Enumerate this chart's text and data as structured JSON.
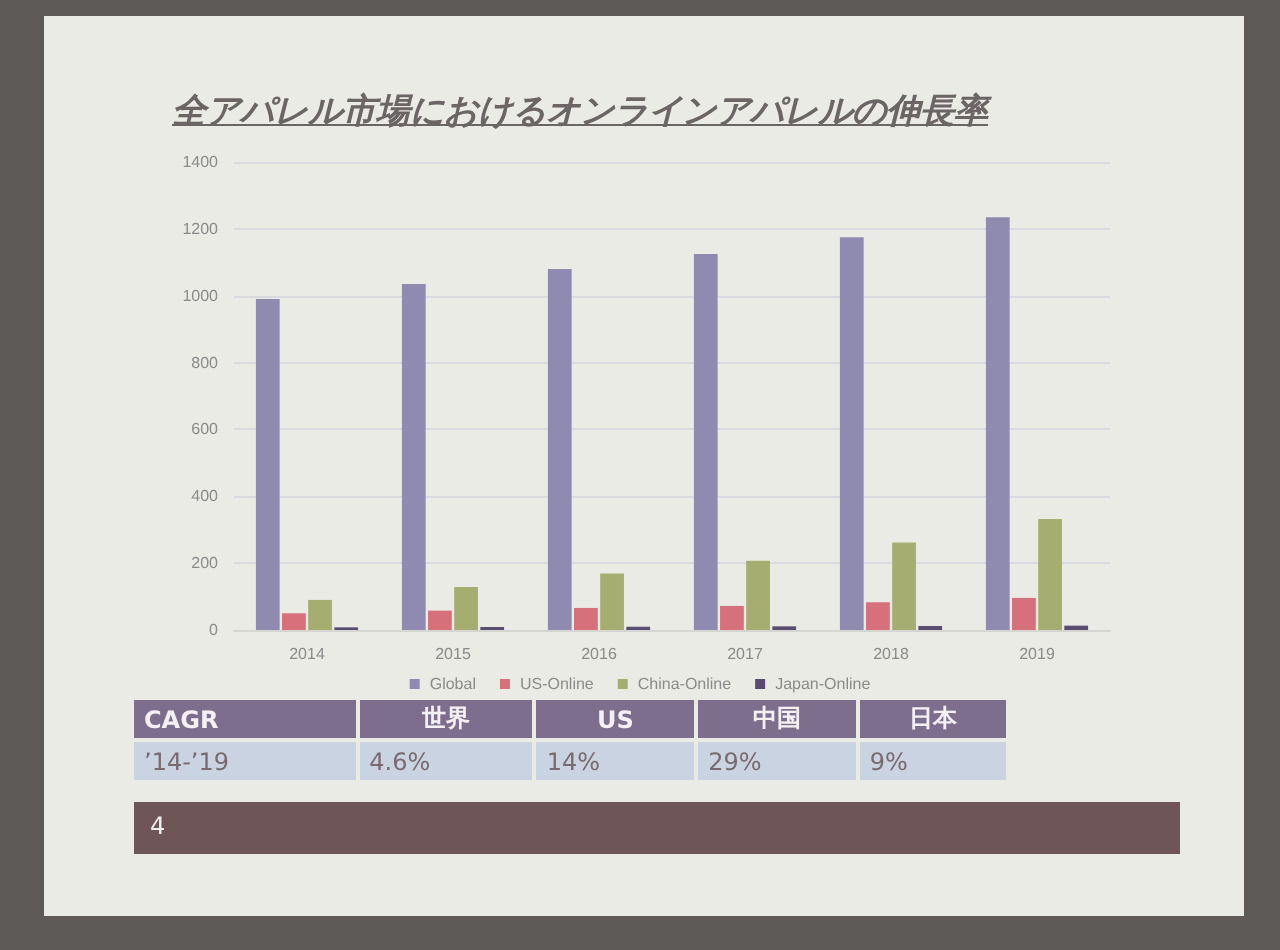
{
  "chart_data": {
    "type": "bar",
    "title": "全アパレル市場におけるオンラインアパレルの伸長率",
    "categories": [
      "2014",
      "2015",
      "2016",
      "2017",
      "2018",
      "2019"
    ],
    "series": [
      {
        "name": "Global",
        "color": "#8f8bb0",
        "values": [
          990,
          1035,
          1080,
          1125,
          1175,
          1235
        ]
      },
      {
        "name": "US-Online",
        "color": "#d6707a",
        "values": [
          50,
          58,
          66,
          72,
          83,
          96
        ]
      },
      {
        "name": "China-Online",
        "color": "#a5ae70",
        "values": [
          90,
          129,
          169,
          207,
          262,
          332
        ]
      },
      {
        "name": "Japan-Online",
        "color": "#5b4d72",
        "values": [
          8,
          9,
          10,
          11,
          12,
          13
        ]
      }
    ],
    "ylim": [
      0,
      1400
    ],
    "yticks": [
      0,
      200,
      400,
      600,
      800,
      1000,
      1200,
      1400
    ],
    "grid": "y",
    "legend": "bottom",
    "annotations": [
      "CAGR",
      "世界",
      "US",
      "中国",
      "日本",
      "’14-’19",
      "4.6%",
      "14%",
      "29%",
      "9%",
      "4"
    ]
  }
}
